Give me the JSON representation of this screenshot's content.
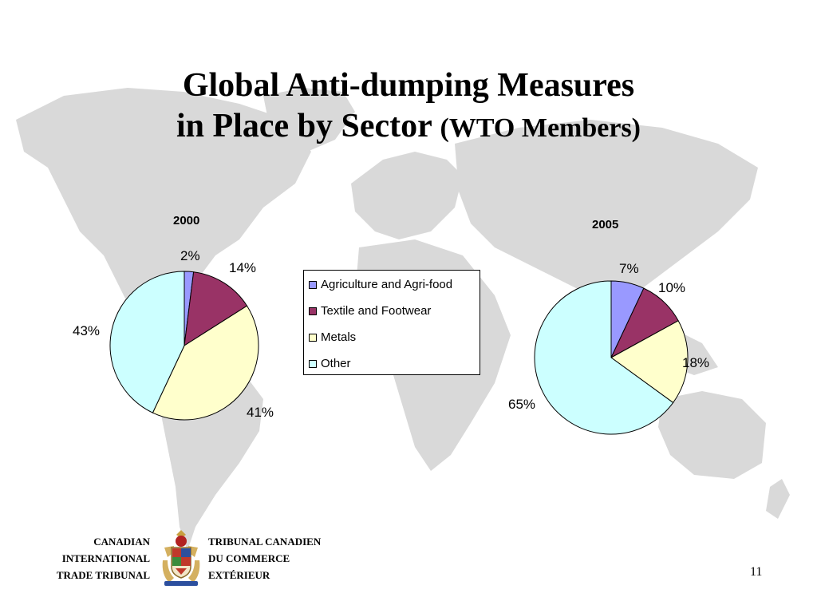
{
  "title": {
    "line1": "Global Anti-dumping Measures",
    "line2": "in Place by Sector",
    "line2_sub": "(WTO Members)"
  },
  "colors": {
    "agriculture": "#9999ff",
    "textile": "#993366",
    "metals": "#ffffcc",
    "other": "#ccffff",
    "map": "#d9d9d9"
  },
  "chart_data": [
    {
      "type": "pie",
      "title": "2000",
      "categories": [
        "Agriculture and Agri-food",
        "Textile and Footwear",
        "Metals",
        "Other"
      ],
      "values": [
        2,
        14,
        41,
        43
      ],
      "labels": [
        "2%",
        "14%",
        "41%",
        "43%"
      ],
      "legend": "center"
    },
    {
      "type": "pie",
      "title": "2005",
      "categories": [
        "Agriculture and Agri-food",
        "Textile and Footwear",
        "Metals",
        "Other"
      ],
      "values": [
        7,
        10,
        18,
        65
      ],
      "labels": [
        "7%",
        "10%",
        "18%",
        "65%"
      ],
      "legend": "center"
    }
  ],
  "legend": {
    "items": [
      "Agriculture and Agri-food",
      "Textile and Footwear",
      "Metals",
      "Other"
    ]
  },
  "org_en": {
    "line1": "CANADIAN",
    "line2": "INTERNATIONAL",
    "line3": "TRADE TRIBUNAL"
  },
  "org_fr": {
    "line1": "TRIBUNAL CANADIEN",
    "line2": "DU COMMERCE",
    "line3": "EXTÉRIEUR"
  },
  "page_number": "11"
}
